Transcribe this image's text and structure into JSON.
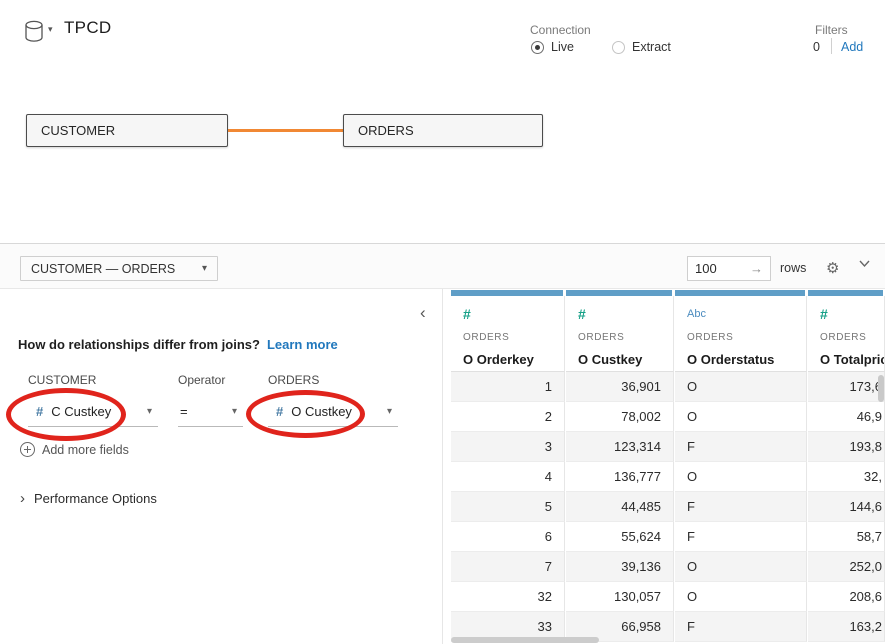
{
  "header": {
    "title": "TPCD",
    "connection": {
      "label": "Connection",
      "options": [
        {
          "label": "Live",
          "selected": true
        },
        {
          "label": "Extract",
          "selected": false
        }
      ]
    },
    "filters": {
      "label": "Filters",
      "count": "0",
      "add_label": "Add"
    }
  },
  "canvas": {
    "tables": [
      {
        "name": "CUSTOMER"
      },
      {
        "name": "ORDERS"
      }
    ]
  },
  "panel": {
    "relationship_selector": "CUSTOMER  —  ORDERS",
    "rows_value": "100",
    "rows_label": "rows",
    "question": "How do relationships differ from joins?",
    "learn_more": "Learn more",
    "editor": {
      "left_table_label": "CUSTOMER",
      "operator_label": "Operator",
      "right_table_label": "ORDERS",
      "left_field": "C Custkey",
      "operator": "=",
      "right_field": "O Custkey",
      "add_more_label": "Add more fields",
      "performance_label": "Performance Options"
    }
  },
  "grid": {
    "columns": [
      {
        "type": "#",
        "table": "ORDERS",
        "field": "O Orderkey",
        "align": "right"
      },
      {
        "type": "#",
        "table": "ORDERS",
        "field": "O Custkey",
        "align": "right"
      },
      {
        "type": "Abc",
        "table": "ORDERS",
        "field": "O Orderstatus",
        "align": "left"
      },
      {
        "type": "#",
        "table": "ORDERS",
        "field": "O Totalprice",
        "align": "edge"
      }
    ],
    "rows": [
      [
        "1",
        "36,901",
        "O",
        "173,6"
      ],
      [
        "2",
        "78,002",
        "O",
        "46,9"
      ],
      [
        "3",
        "123,314",
        "F",
        "193,8"
      ],
      [
        "4",
        "136,777",
        "O",
        "32,"
      ],
      [
        "5",
        "44,485",
        "F",
        "144,6"
      ],
      [
        "6",
        "55,624",
        "F",
        "58,7"
      ],
      [
        "7",
        "39,136",
        "O",
        "252,0"
      ],
      [
        "32",
        "130,057",
        "O",
        "208,6"
      ],
      [
        "33",
        "66,958",
        "F",
        "163,2"
      ]
    ]
  },
  "colors": {
    "grid_header_bar": "#5f9ec7",
    "relationship_line": "#f18834",
    "annotation_red": "#e0241c",
    "link_blue": "#2178bd",
    "numeric_field_green": "#17a188",
    "field_icon_blue": "#4a7da5",
    "text_field_blue": "#4c8cbf"
  }
}
